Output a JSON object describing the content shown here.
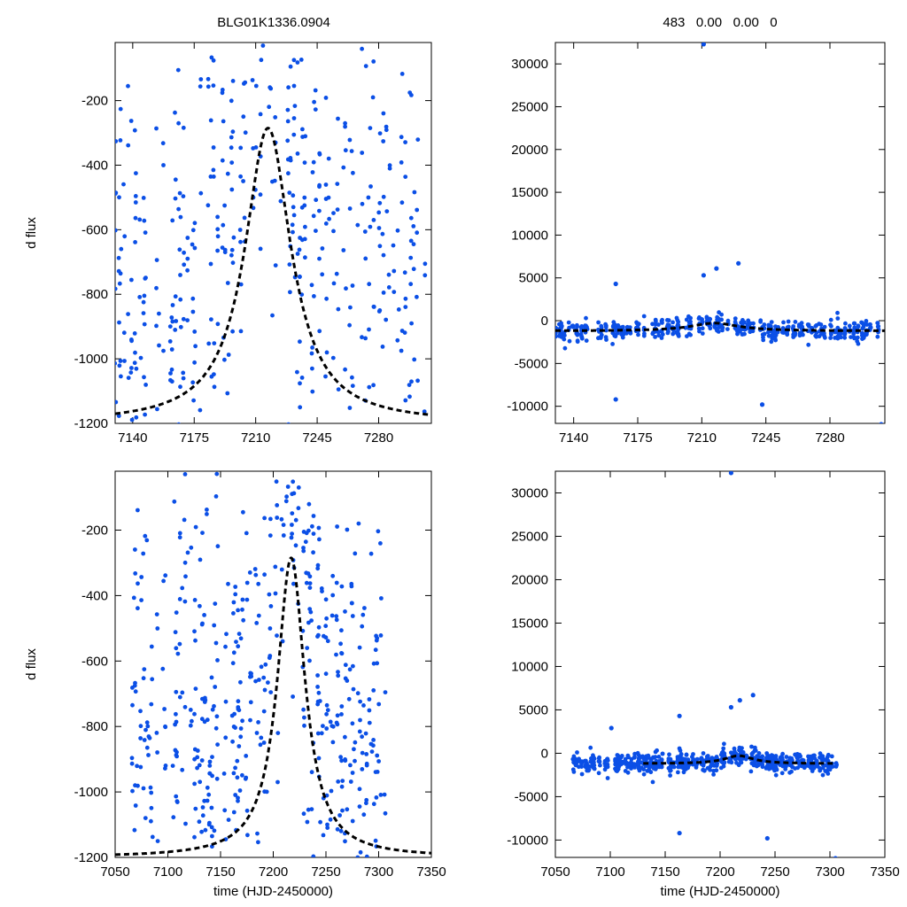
{
  "figure": {
    "title_left": "BLG01K1336.0904",
    "title_right": "483   0.00   0.00   0"
  },
  "colors": {
    "points": "#0b4fe6",
    "model": "#000000",
    "axes": "#000000"
  },
  "chart_data": [
    {
      "type": "scatter",
      "panel": "top-left",
      "xlabel": "",
      "ylabel": "d flux",
      "xlim": [
        7130,
        7310
      ],
      "ylim": [
        -1200,
        -20
      ],
      "xticks": [
        7140,
        7175,
        7210,
        7245,
        7280
      ],
      "yticks": [
        -1200,
        -1000,
        -800,
        -600,
        -400,
        -200
      ],
      "model_curve": {
        "style": "dashed",
        "peak_x": 7217,
        "peak_y": -285,
        "baseline_y": -1200,
        "half_width_days": 16
      },
      "point_count_approx": 1400,
      "series": [
        {
          "values_distribution": "dense scatter between -1200 and -30 across all observation seasons"
        }
      ]
    },
    {
      "type": "scatter",
      "panel": "top-right",
      "xlabel": "",
      "ylabel": "",
      "xlim": [
        7130,
        7310
      ],
      "ylim": [
        -12000,
        32500
      ],
      "xticks": [
        7140,
        7175,
        7210,
        7245,
        7280
      ],
      "yticks": [
        -10000,
        -5000,
        0,
        5000,
        10000,
        15000,
        20000,
        25000,
        30000
      ],
      "model_curve": {
        "style": "dashed",
        "peak_x": 7217,
        "peak_y": -285,
        "baseline_y": -1200,
        "half_width_days": 16
      },
      "outliers": [
        {
          "x": 7211,
          "y": 32300
        },
        {
          "x": 7230,
          "y": 6700
        },
        {
          "x": 7218,
          "y": 6100
        },
        {
          "x": 7211,
          "y": 5300
        },
        {
          "x": 7163,
          "y": 4300
        },
        {
          "x": 7163,
          "y": -9200
        },
        {
          "x": 7243,
          "y": -9800
        },
        {
          "x": 7308,
          "y": -12100
        }
      ]
    },
    {
      "type": "scatter",
      "panel": "bottom-left",
      "xlabel": "time (HJD-2450000)",
      "ylabel": "d flux",
      "xlim": [
        7050,
        7350
      ],
      "ylim": [
        -1200,
        -20
      ],
      "xticks": [
        7050,
        7100,
        7150,
        7200,
        7250,
        7300,
        7350
      ],
      "yticks": [
        -1200,
        -1000,
        -800,
        -600,
        -400,
        -200
      ],
      "model_curve": {
        "style": "dashed",
        "peak_x": 7217,
        "peak_y": -285,
        "baseline_y": -1200,
        "half_width_days": 16
      },
      "point_count_approx": 1700,
      "series": [
        {
          "values_distribution": "dense scatter between -1200 and -30 from 7065 to 7305"
        }
      ]
    },
    {
      "type": "scatter",
      "panel": "bottom-right",
      "xlabel": "time (HJD-2450000)",
      "ylabel": "",
      "xlim": [
        7050,
        7350
      ],
      "ylim": [
        -12000,
        32500
      ],
      "xticks": [
        7050,
        7100,
        7150,
        7200,
        7250,
        7300,
        7350
      ],
      "yticks": [
        -10000,
        -5000,
        0,
        5000,
        10000,
        15000,
        20000,
        25000,
        30000
      ],
      "model_curve": {
        "style": "dashed",
        "peak_x": 7217,
        "peak_y": -285,
        "baseline_y": -1200,
        "half_width_days": 16,
        "x_start": 7130,
        "x_end": 7305
      },
      "outliers": [
        {
          "x": 7210,
          "y": 32300
        },
        {
          "x": 7230,
          "y": 6700
        },
        {
          "x": 7218,
          "y": 6100
        },
        {
          "x": 7210,
          "y": 5300
        },
        {
          "x": 7163,
          "y": 4300
        },
        {
          "x": 7101,
          "y": 2900
        },
        {
          "x": 7163,
          "y": -9200
        },
        {
          "x": 7243,
          "y": -9800
        },
        {
          "x": 7305,
          "y": -12100
        }
      ]
    }
  ]
}
